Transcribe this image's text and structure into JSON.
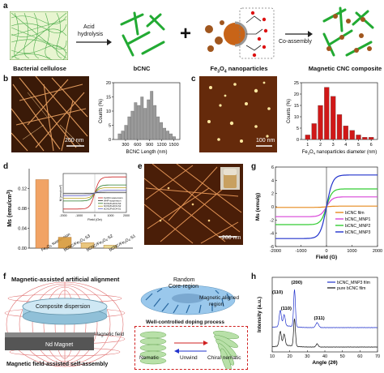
{
  "panels": {
    "a": "a",
    "b": "b",
    "c": "c",
    "d": "d",
    "e": "e",
    "f": "f",
    "g": "g",
    "h": "h"
  },
  "panel_a": {
    "label_bc": "Bacterial cellulose",
    "arrow1": [
      "Acid",
      "hydrolysis"
    ],
    "label_bcnc": "bCNC",
    "plus": "+",
    "label_fe3o4_prefix": "Fe",
    "label_fe3o4_sub1": "3",
    "label_fe3o4_mid": "O",
    "label_fe3o4_sub2": "4",
    "label_fe3o4_suffix": " nanoparticles",
    "arrow2": "Co-assembly",
    "label_composite": "Magnetic CNC composite"
  },
  "panel_b": {
    "scale": "200 nm"
  },
  "panel_c": {
    "scale": "100 nm"
  },
  "panel_e": {
    "scale": "200 nm"
  },
  "chart_b": {
    "type": "bar",
    "ylabel": "Counts (%)",
    "xlabel": "BCNC Length (nm)",
    "xticks": [
      "300",
      "600",
      "900",
      "1200",
      "1500"
    ],
    "yticks": [
      "0",
      "5",
      "10",
      "15",
      "20"
    ],
    "ylim": [
      0,
      20
    ],
    "xlim": [
      0,
      1650
    ],
    "bars": [
      {
        "x": 150,
        "v": 2
      },
      {
        "x": 230,
        "v": 3
      },
      {
        "x": 310,
        "v": 5
      },
      {
        "x": 390,
        "v": 8
      },
      {
        "x": 470,
        "v": 10
      },
      {
        "x": 550,
        "v": 13
      },
      {
        "x": 630,
        "v": 12
      },
      {
        "x": 710,
        "v": 15
      },
      {
        "x": 790,
        "v": 11
      },
      {
        "x": 870,
        "v": 14
      },
      {
        "x": 950,
        "v": 17
      },
      {
        "x": 1030,
        "v": 12
      },
      {
        "x": 1110,
        "v": 8
      },
      {
        "x": 1190,
        "v": 6
      },
      {
        "x": 1270,
        "v": 4
      },
      {
        "x": 1350,
        "v": 3
      },
      {
        "x": 1430,
        "v": 2
      },
      {
        "x": 1510,
        "v": 1
      }
    ],
    "bar_width": 70,
    "color": "#9a9a9a"
  },
  "chart_c": {
    "type": "bar",
    "ylabel": "Counts (%)",
    "xlabel_prefix": "Fe",
    "xlabel_sub1": "3",
    "xlabel_mid": "O",
    "xlabel_sub2": "4",
    "xlabel_suffix": " nanoparticles diameter (nm)",
    "xticks": [
      "1",
      "2",
      "3",
      "4",
      "5",
      "6"
    ],
    "yticks": [
      "0",
      "5",
      "10",
      "15",
      "20",
      "25"
    ],
    "ylim": [
      0,
      25
    ],
    "xlim": [
      0.5,
      6.5
    ],
    "bars": [
      {
        "x": 1.0,
        "v": 2
      },
      {
        "x": 1.5,
        "v": 7
      },
      {
        "x": 2.0,
        "v": 15
      },
      {
        "x": 2.5,
        "v": 23
      },
      {
        "x": 3.0,
        "v": 19
      },
      {
        "x": 3.5,
        "v": 11
      },
      {
        "x": 4.0,
        "v": 6
      },
      {
        "x": 4.5,
        "v": 4
      },
      {
        "x": 5.0,
        "v": 2
      },
      {
        "x": 5.5,
        "v": 1
      },
      {
        "x": 6.0,
        "v": 1
      }
    ],
    "bar_width": 0.38,
    "color": "#d01818"
  },
  "chart_d": {
    "type": "bar",
    "ylabel_main": "Ms (emu/cm",
    "ylabel_sup": "3",
    "ylabel_end": ")",
    "yticks": [
      "0.00",
      "0.04",
      "0.08",
      "0.12"
    ],
    "ylim": [
      0,
      0.16
    ],
    "bars": [
      {
        "v": 0.138
      },
      {
        "v": 0.022
      },
      {
        "v": 0.011
      },
      {
        "v": 0.006
      }
    ],
    "bar_labels": [
      [
        "Fe",
        "3",
        "O",
        "4",
        " suspension"
      ],
      [
        "bCNC/Fe",
        "3",
        "O",
        "4",
        "-S3"
      ],
      [
        "bCNC/Fe",
        "3",
        "O",
        "4",
        "-S2"
      ],
      [
        "bCNC/Fe",
        "3",
        "O",
        "4",
        "-S1"
      ]
    ],
    "colors": [
      "#f09a55",
      "#d89a3a",
      "#e8c070",
      "#e9d88a"
    ],
    "inset": {
      "ylabel": "M (emu/cm³)",
      "xlabel": "Field (Oe)",
      "xticks": [
        "-2000",
        "-1000",
        "0",
        "1000",
        "2000"
      ],
      "legend": [
        {
          "name": "Fe3O4 suspension",
          "color": "#cc2222"
        },
        {
          "name": "WHP suspension",
          "color": "#333333"
        },
        {
          "name": "bCNC/Fe3O4-S3",
          "color": "#2a7a2a"
        },
        {
          "name": "bCNC/Fe3O4-S2",
          "color": "#b8a020"
        },
        {
          "name": "bCNC/Fe3O4-S1",
          "color": "#6666cc"
        }
      ]
    }
  },
  "chart_g": {
    "type": "line",
    "ylabel": "Ms (emu/g)",
    "xlabel": "Field (G)",
    "xticks": [
      "-2000",
      "-1000",
      "0",
      "1000",
      "2000"
    ],
    "yticks": [
      "-6",
      "-4",
      "-2",
      "0",
      "2",
      "4",
      "6"
    ],
    "xlim": [
      -2000,
      2000
    ],
    "ylim": [
      -6,
      6
    ],
    "series": [
      {
        "name": "bCNC film",
        "color": "#e68a1e",
        "ms": 0.1,
        "k": 300
      },
      {
        "name": "bCNC_MNP1",
        "color": "#d946d9",
        "ms": 1.5,
        "k": 230
      },
      {
        "name": "bCNC_MNP2",
        "color": "#33cc33",
        "ms": 2.7,
        "k": 220
      },
      {
        "name": "bCNC_MNP3",
        "color": "#2233cc",
        "ms": 4.8,
        "k": 240
      }
    ]
  },
  "chart_h": {
    "type": "line",
    "ylabel": "Intensity (a.u.)",
    "xlabel": "Angle (2θ)",
    "xticks": [
      "10",
      "20",
      "30",
      "40",
      "50",
      "60",
      "70"
    ],
    "xlim": [
      10,
      70
    ],
    "legend": [
      {
        "name": "bCNC_MNP3 film",
        "color": "#2233cc"
      },
      {
        "name": "pure bCNC film",
        "color": "#111111"
      }
    ],
    "annotations": [
      "(110)",
      "(200)",
      "(110)",
      "(311)"
    ]
  },
  "panel_f": {
    "title_top": "Magnetic-assisted artificial alignment",
    "title_bottom": "Magnetic field-assisted self-assembly",
    "composite": "Composite dispersion",
    "nd": "Nd Magnet",
    "mf": "Magnetic field",
    "random": "Random",
    "core": "Core-region",
    "aligned1": "Magnetic aligned",
    "aligned2": "region",
    "doping": "Well-controlled doping process",
    "nematic": "Nematic",
    "unwind": "Unwind",
    "chiral": "Chiral nematic"
  }
}
